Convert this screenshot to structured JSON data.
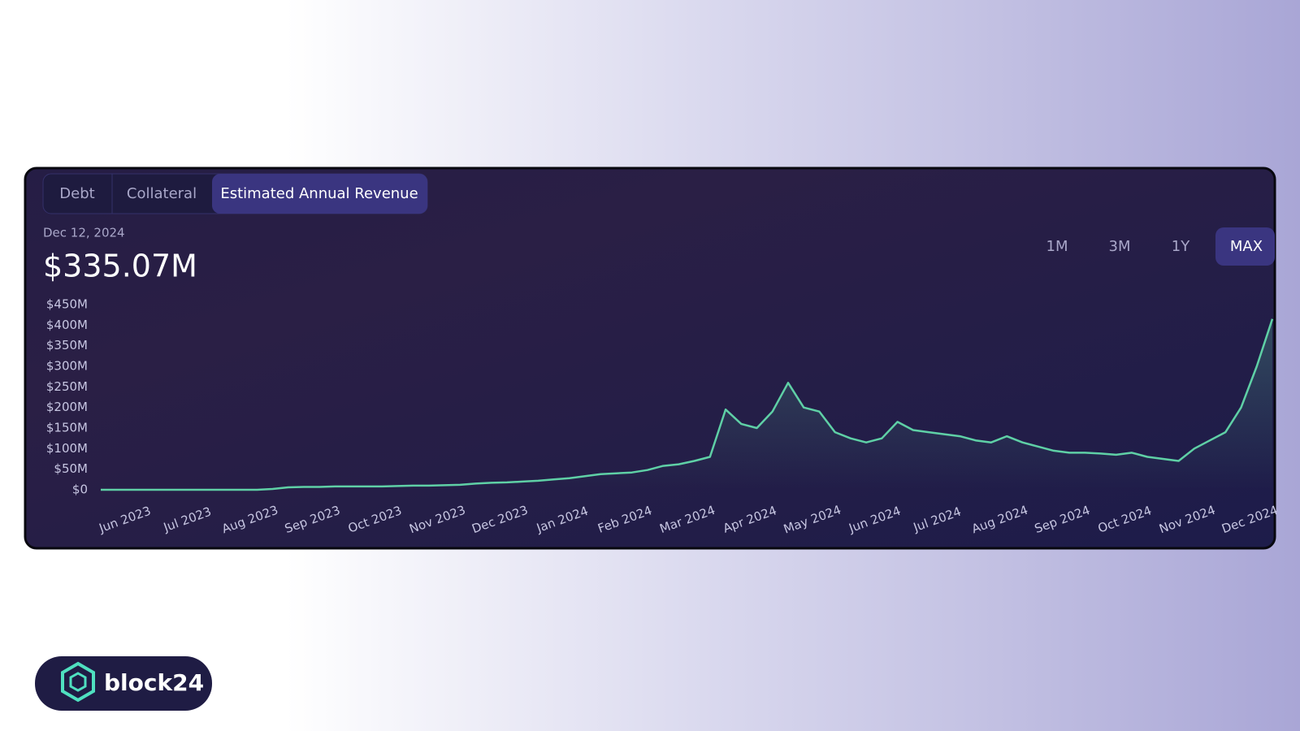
{
  "tabs": [
    "Debt",
    "Collateral",
    "Estimated Annual Revenue"
  ],
  "date": "Dec 12, 2024",
  "headline_value": "$335.07M",
  "ranges": [
    "1M",
    "3M",
    "1Y",
    "MAX"
  ],
  "logo": "block24",
  "chart_data": {
    "type": "line",
    "color": "#5fd0a6",
    "categories": [
      "Jun 2023",
      null,
      null,
      null,
      "Jul 2023",
      null,
      null,
      null,
      "Aug 2023",
      null,
      null,
      null,
      "Sep 2023",
      null,
      null,
      null,
      "Oct 2023",
      null,
      null,
      null,
      "Nov 2023",
      null,
      null,
      null,
      "Dec 2023",
      null,
      null,
      null,
      "Jan 2024",
      null,
      null,
      null,
      "Feb 2024",
      null,
      null,
      null,
      "Mar 2024",
      null,
      null,
      null,
      "Apr 2024",
      null,
      null,
      null,
      "May 2024",
      null,
      null,
      null,
      "Jun 2024",
      null,
      null,
      null,
      "Jul 2024",
      null,
      null,
      null,
      "Aug 2024",
      null,
      null,
      null,
      "Sep 2024",
      null,
      null,
      null,
      "Oct 2024",
      null,
      null,
      null,
      "Nov 2024",
      null,
      null,
      null,
      "Dec 2024",
      null,
      null,
      null
    ],
    "values": [
      0,
      0,
      0,
      0,
      0,
      0,
      0,
      0,
      0,
      0,
      0,
      2,
      6,
      7,
      7,
      8,
      8,
      8,
      8,
      9,
      10,
      10,
      11,
      12,
      15,
      17,
      18,
      20,
      22,
      25,
      28,
      33,
      38,
      40,
      42,
      48,
      58,
      62,
      70,
      80,
      195,
      160,
      150,
      190,
      260,
      200,
      190,
      140,
      125,
      115,
      125,
      165,
      145,
      140,
      135,
      130,
      120,
      115,
      130,
      115,
      105,
      95,
      90,
      90,
      88,
      85,
      90,
      80,
      75,
      70,
      100,
      120,
      140,
      200,
      300,
      415
    ],
    "ylim": [
      0,
      450
    ],
    "yticks": [
      {
        "value": 0,
        "label": "$0"
      },
      {
        "value": 50,
        "label": "$50M"
      },
      {
        "value": 100,
        "label": "$100M"
      },
      {
        "value": 150,
        "label": "$150M"
      },
      {
        "value": 200,
        "label": "$200M"
      },
      {
        "value": 250,
        "label": "$250M"
      },
      {
        "value": 300,
        "label": "$300M"
      },
      {
        "value": 350,
        "label": "$350M"
      },
      {
        "value": 400,
        "label": "$400M"
      },
      {
        "value": 450,
        "label": "$450M"
      }
    ]
  }
}
